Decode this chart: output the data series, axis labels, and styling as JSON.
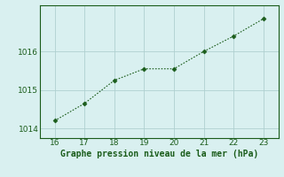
{
  "x": [
    16,
    17,
    18,
    19,
    20,
    21,
    22,
    23
  ],
  "y": [
    1014.2,
    1014.65,
    1015.25,
    1015.55,
    1015.55,
    1016.0,
    1016.4,
    1016.85
  ],
  "line_color": "#1a5c1a",
  "marker": "D",
  "marker_size": 2.5,
  "xlabel": "Graphe pression niveau de la mer (hPa)",
  "xlabel_color": "#1a5c1a",
  "xlabel_fontsize": 7.0,
  "background_color": "#d9f0f0",
  "grid_color": "#b0d0d0",
  "tick_color": "#1a5c1a",
  "tick_fontsize": 6.5,
  "xlim": [
    15.5,
    23.5
  ],
  "ylim": [
    1013.75,
    1017.2
  ],
  "yticks": [
    1014,
    1015,
    1016
  ],
  "xticks": [
    16,
    17,
    18,
    19,
    20,
    21,
    22,
    23
  ]
}
